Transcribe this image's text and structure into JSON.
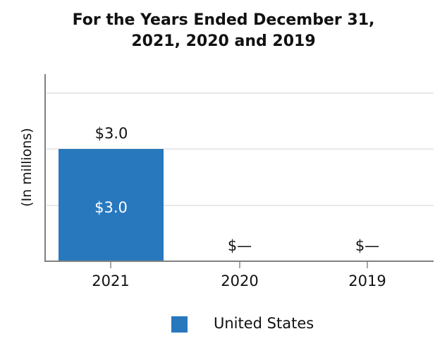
{
  "title": {
    "line1": "For the Years Ended December 31,",
    "line2": "2021, 2020 and 2019"
  },
  "y_axis": {
    "label": "(In millions)"
  },
  "x_axis": {
    "tick_labels": [
      "2021",
      "2020",
      "2019"
    ]
  },
  "labels": {
    "bar_2021_outer": "$3.0",
    "bar_2021_inner": "$3.0",
    "bar_2020": "$—",
    "bar_2019": "$—"
  },
  "legend": {
    "label": "United States",
    "color": "#2878BE"
  },
  "colors": {
    "bar": "#2878BE",
    "axis": "#808080",
    "gridline": "#e8e8e8",
    "text": "#111111"
  },
  "chart_data": {
    "type": "bar",
    "title": "For the Years Ended December 31, 2021, 2020 and 2019",
    "categories": [
      "2021",
      "2020",
      "2019"
    ],
    "series": [
      {
        "name": "United States",
        "values": [
          3.0,
          0,
          0
        ],
        "color": "#2878BE",
        "data_labels": [
          "$3.0",
          "$—",
          "$—"
        ]
      }
    ],
    "xlabel": "",
    "ylabel": "(In millions)",
    "ylim": [
      0,
      5
    ],
    "gridline_values": [
      1.5,
      3.0,
      4.5
    ],
    "y_tick_labels_shown": false,
    "grid": "horizontal",
    "legend_position": "bottom"
  }
}
